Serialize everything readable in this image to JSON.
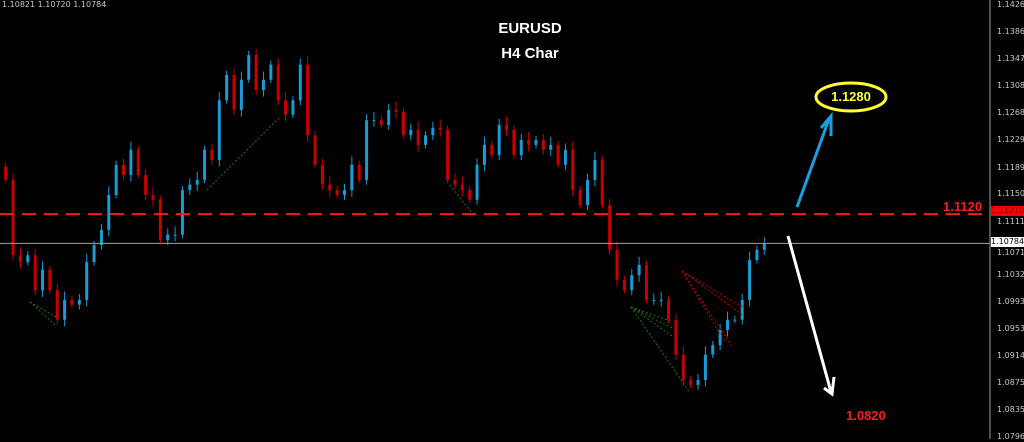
{
  "header": {
    "ohlc_readout": "1.10821 1.10720 1.10784",
    "title_line1": "EURUSD",
    "title_line2": "H4 Char"
  },
  "annotations": {
    "resistance_label": "1.1120",
    "target_up_label": "1.1280",
    "target_down_label": "1.0820",
    "resistance_price_tag": "1.11210",
    "current_price_tag": "1.10784"
  },
  "colors": {
    "background": "#000000",
    "bull_candle": "#1a9ad6",
    "bear_candle": "#c80000",
    "resistance_line": "#ff1a1a",
    "current_price_line": "#a0a0a0",
    "up_arrow": "#1aa0e0",
    "down_arrow": "#ffffff",
    "target_ellipse": "#ffff33"
  },
  "chart_data": {
    "type": "candlestick",
    "symbol": "EURUSD",
    "timeframe": "H4",
    "y_ticks": [
      "1.14260",
      "1.13860",
      "1.13470",
      "1.13080",
      "1.12680",
      "1.12290",
      "1.11890",
      "1.11500",
      "1.11110",
      "1.10710",
      "1.10320",
      "1.09930",
      "1.09530",
      "1.09140",
      "1.08750",
      "1.08350",
      "1.07960"
    ],
    "ylim": [
      1.0796,
      1.1426
    ],
    "grid": false,
    "horizontal_lines": [
      {
        "price": 1.1121,
        "style": "dashed",
        "label": "1.1120"
      },
      {
        "price": 1.10784,
        "style": "solid"
      }
    ],
    "closes": [
      1.1171,
      1.1061,
      1.1051,
      1.1061,
      1.101,
      1.104,
      1.101,
      1.0967,
      1.0996,
      1.0989,
      1.0996,
      1.1051,
      1.1076,
      1.1098,
      1.1149,
      1.1193,
      1.1178,
      1.1215,
      1.1178,
      1.1149,
      1.1142,
      1.1083,
      1.1091,
      1.1091,
      1.1156,
      1.1164,
      1.1171,
      1.1215,
      1.12,
      1.1287,
      1.1324,
      1.1273,
      1.1317,
      1.1353,
      1.1302,
      1.1317,
      1.1339,
      1.1287,
      1.1266,
      1.1287,
      1.1339,
      1.1236,
      1.1193,
      1.1164,
      1.1156,
      1.1149,
      1.1156,
      1.1193,
      1.1171,
      1.1258,
      1.1258,
      1.1251,
      1.1273,
      1.127,
      1.1236,
      1.1244,
      1.1222,
      1.1236,
      1.1247,
      1.1244,
      1.1171,
      1.1164,
      1.1156,
      1.1142,
      1.1193,
      1.1222,
      1.1207,
      1.1251,
      1.1244,
      1.1207,
      1.1229,
      1.1222,
      1.1229,
      1.1215,
      1.1222,
      1.1193,
      1.1215,
      1.1156,
      1.1134,
      1.1171,
      1.12,
      1.1134,
      1.1069,
      1.1025,
      1.101,
      1.1032,
      1.1047,
      1.0996,
      1.0996,
      1.0996,
      1.0967,
      1.0916,
      1.0879,
      1.0872,
      1.0879,
      1.0916,
      1.093,
      1.0952,
      1.0967,
      1.0967,
      1.0996,
      1.1054,
      1.1069,
      1.10784
    ],
    "forecast": {
      "up_target": 1.128,
      "down_target": 1.082
    }
  }
}
